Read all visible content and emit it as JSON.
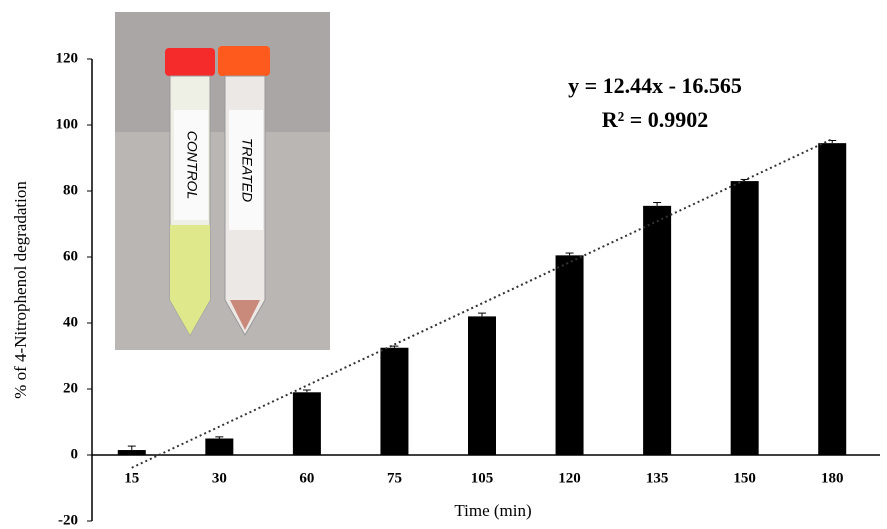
{
  "chart_data": {
    "type": "bar",
    "x_label": "Time  (min)",
    "y_label": "% of 4-Nitrophenol  degradation",
    "categories": [
      "15",
      "30",
      "60",
      "75",
      "105",
      "120",
      "135",
      "150",
      "180"
    ],
    "values": [
      1.5,
      5,
      19,
      32.5,
      42,
      60.5,
      75.5,
      83,
      94.5
    ],
    "errors": [
      1.2,
      0.5,
      0.7,
      0.5,
      1,
      0.7,
      1,
      0.5,
      0.8
    ],
    "color": "#000000",
    "ylim": [
      -20,
      120
    ],
    "yticks": [
      -20,
      0,
      20,
      40,
      60,
      80,
      100,
      120
    ],
    "trendline": {
      "equation": "y = 12.44x - 16.565",
      "r_squared": "R² = 0.9902"
    },
    "inset": {
      "labels": [
        "CONTROL",
        "TREATED"
      ]
    }
  }
}
